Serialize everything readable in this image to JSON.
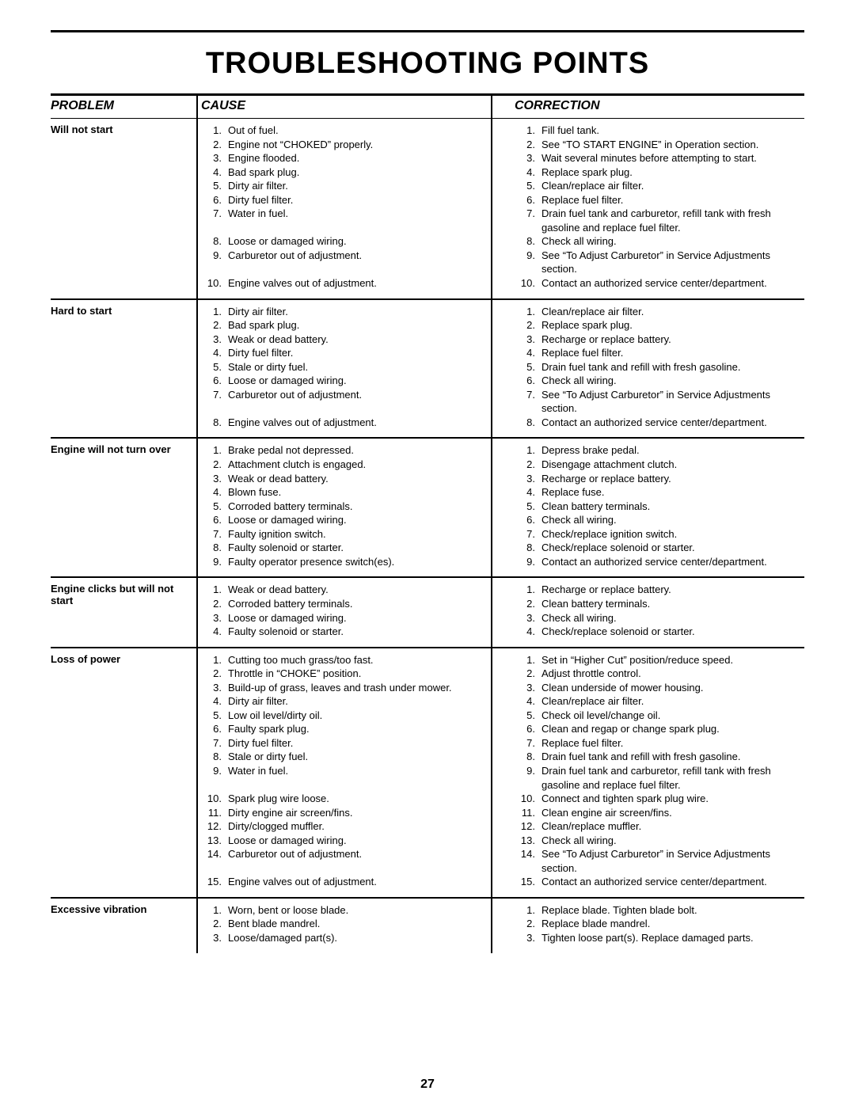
{
  "title": "TROUBLESHOOTING POINTS",
  "page_number": "27",
  "headers": {
    "problem": "PROBLEM",
    "cause": "CAUSE",
    "correction": "CORRECTION"
  },
  "sections": [
    {
      "problem": "Will not start",
      "causes": [
        "Out of fuel.",
        "Engine not “CHOKED” properly.",
        "Engine flooded.",
        "Bad spark plug.",
        "Dirty air filter.",
        "Dirty fuel filter.",
        "Water in fuel.",
        "",
        "Loose or damaged wiring.",
        "Carburetor out of adjustment.",
        "",
        "Engine valves out of adjustment."
      ],
      "cause_numbers": [
        "1.",
        "2.",
        "3.",
        "4.",
        "5.",
        "6.",
        "7.",
        "",
        "8.",
        "9.",
        "",
        "10."
      ],
      "corrections": [
        "Fill fuel tank.",
        "See “TO START ENGINE” in Operation section.",
        "Wait several minutes before attempting to start.",
        "Replace spark plug.",
        "Clean/replace air filter.",
        "Replace fuel filter.",
        "Drain fuel tank and carburetor, refill tank with fresh gasoline and replace fuel filter.",
        "Check all wiring.",
        "See “To Adjust Carburetor” in Service Adjustments section.",
        "Contact an authorized service center/department."
      ],
      "correction_numbers": [
        "1.",
        "2.",
        "3.",
        "4.",
        "5.",
        "6.",
        "7.",
        "8.",
        "9.",
        "10."
      ]
    },
    {
      "problem": "Hard to start",
      "causes": [
        "Dirty air filter.",
        "Bad spark plug.",
        "Weak or dead battery.",
        "Dirty fuel filter.",
        "Stale or dirty fuel.",
        "Loose or damaged wiring.",
        "Carburetor out of adjustment.",
        "",
        "Engine valves out of adjustment."
      ],
      "cause_numbers": [
        "1.",
        "2.",
        "3.",
        "4.",
        "5.",
        "6.",
        "7.",
        "",
        "8."
      ],
      "corrections": [
        "Clean/replace air filter.",
        "Replace spark plug.",
        "Recharge or replace battery.",
        "Replace fuel filter.",
        "Drain fuel tank and refill with fresh gasoline.",
        "Check all wiring.",
        "See “To Adjust Carburetor” in Service Adjustments section.",
        "Contact an authorized service center/department."
      ],
      "correction_numbers": [
        "1.",
        "2.",
        "3.",
        "4.",
        "5.",
        "6.",
        "7.",
        "8."
      ]
    },
    {
      "problem": "Engine will not turn over",
      "causes": [
        "Brake pedal not depressed.",
        "Attachment clutch is engaged.",
        "Weak or dead battery.",
        "Blown fuse.",
        "Corroded battery terminals.",
        "Loose or damaged wiring.",
        "Faulty ignition switch.",
        "Faulty solenoid or starter.",
        "Faulty operator presence switch(es)."
      ],
      "cause_numbers": [
        "1.",
        "2.",
        "3.",
        "4.",
        "5.",
        "6.",
        "7.",
        "8.",
        "9."
      ],
      "corrections": [
        "Depress brake pedal.",
        "Disengage attachment clutch.",
        "Recharge or replace battery.",
        "Replace fuse.",
        "Clean battery terminals.",
        "Check all wiring.",
        "Check/replace ignition switch.",
        "Check/replace solenoid or starter.",
        "Contact an authorized service center/department."
      ],
      "correction_numbers": [
        "1.",
        "2.",
        "3.",
        "4.",
        "5.",
        "6.",
        "7.",
        "8.",
        "9."
      ]
    },
    {
      "problem": "Engine clicks but will not start",
      "causes": [
        "Weak or dead battery.",
        "Corroded battery terminals.",
        "Loose or damaged wiring.",
        "Faulty solenoid or starter."
      ],
      "cause_numbers": [
        "1.",
        "2.",
        "3.",
        "4."
      ],
      "corrections": [
        "Recharge or replace battery.",
        "Clean battery terminals.",
        "Check all wiring.",
        "Check/replace solenoid or starter."
      ],
      "correction_numbers": [
        "1.",
        "2.",
        "3.",
        "4."
      ]
    },
    {
      "problem": "Loss of power",
      "causes": [
        "Cutting too much grass/too fast.",
        "Throttle in “CHOKE” position.",
        "Build-up of grass, leaves and trash under mower.",
        "Dirty air filter.",
        "Low oil level/dirty oil.",
        "Faulty spark plug.",
        "Dirty fuel filter.",
        "Stale or dirty fuel.",
        "Water in fuel.",
        "",
        "Spark plug wire loose.",
        "Dirty engine air screen/fins.",
        "Dirty/clogged muffler.",
        "Loose or damaged wiring.",
        "Carburetor out of adjustment.",
        "",
        "Engine valves out of adjustment."
      ],
      "cause_numbers": [
        "1.",
        "2.",
        "3.",
        "4.",
        "5.",
        "6.",
        "7.",
        "8.",
        "9.",
        "",
        "10.",
        "11.",
        "12.",
        "13.",
        "14.",
        "",
        "15."
      ],
      "corrections": [
        "Set in “Higher Cut” position/reduce speed.",
        "Adjust throttle control.",
        "Clean underside of mower housing.",
        "Clean/replace air filter.",
        "Check oil level/change oil.",
        "Clean and regap or change spark plug.",
        "Replace fuel filter.",
        "Drain fuel tank and refill with fresh gasoline.",
        "Drain fuel tank and carburetor, refill tank with fresh gasoline and replace fuel filter.",
        "Connect and tighten spark plug wire.",
        "Clean engine air screen/fins.",
        "Clean/replace muffler.",
        "Check all wiring.",
        "See “To Adjust Carburetor” in Service Adjustments section.",
        "Contact an authorized service center/department."
      ],
      "correction_numbers": [
        "1.",
        "2.",
        "3.",
        "4.",
        "5.",
        "6.",
        "7.",
        "8.",
        "9.",
        "10.",
        "11.",
        "12.",
        "13.",
        "14.",
        "15."
      ]
    },
    {
      "problem": "Excessive vibration",
      "causes": [
        "Worn, bent or loose blade.",
        "Bent blade mandrel.",
        "Loose/damaged part(s)."
      ],
      "cause_numbers": [
        "1.",
        "2.",
        "3."
      ],
      "corrections": [
        "Replace blade.  Tighten blade bolt.",
        "Replace blade mandrel.",
        "Tighten loose part(s).  Replace damaged parts."
      ],
      "correction_numbers": [
        "1.",
        "2.",
        "3."
      ]
    }
  ]
}
